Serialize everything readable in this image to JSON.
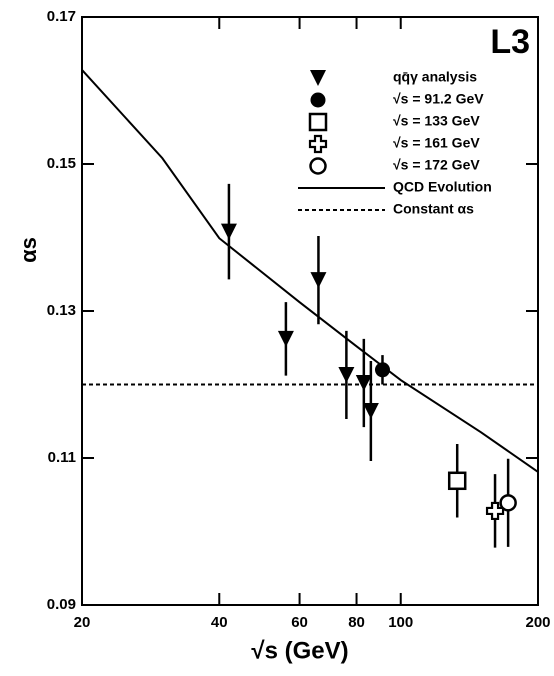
{
  "chart_data": {
    "type": "scatter",
    "label": "L3",
    "xlabel": "√s  (GeV)",
    "ylabel": "αs",
    "log_x": true,
    "xlim": [
      20,
      200
    ],
    "ylim": [
      0.09,
      0.17
    ],
    "xticks": [
      20,
      40,
      60,
      80,
      100,
      200
    ],
    "yticks": [
      0.09,
      0.11,
      0.13,
      0.15,
      0.17
    ],
    "series": [
      {
        "name": "qq̄γ analysis",
        "marker": "triangle-down",
        "x": [
          42,
          56,
          66,
          76,
          83,
          86
        ],
        "values": [
          0.1408,
          0.1262,
          0.1342,
          0.1213,
          0.1202,
          0.1164
        ],
        "errors": [
          0.0065,
          0.005,
          0.006,
          0.006,
          0.006,
          0.0068
        ]
      },
      {
        "name": "√s = 91.2 GeV",
        "marker": "circle-filled",
        "x": [
          91.2
        ],
        "values": [
          0.122
        ],
        "errors": [
          0.002
        ]
      },
      {
        "name": "√s = 133 GeV",
        "marker": "square-open",
        "x": [
          133
        ],
        "values": [
          0.1069
        ],
        "errors": [
          0.005
        ]
      },
      {
        "name": "√s = 161 GeV",
        "marker": "cross-open",
        "x": [
          161
        ],
        "values": [
          0.1028
        ],
        "errors": [
          0.005
        ]
      },
      {
        "name": "√s = 172 GeV",
        "marker": "circle-open",
        "x": [
          172
        ],
        "values": [
          0.1039
        ],
        "errors": [
          0.006
        ]
      },
      {
        "name": "QCD Evolution",
        "line": "solid",
        "x": [
          20,
          30,
          40,
          60,
          80,
          100,
          150,
          200
        ],
        "values": [
          0.1628,
          0.1508,
          0.1399,
          0.1312,
          0.1252,
          0.1206,
          0.1135,
          0.1081
        ]
      },
      {
        "name": "Constant αs",
        "line": "dashed",
        "x": [
          20,
          200
        ],
        "values": [
          0.12,
          0.12
        ]
      }
    ]
  }
}
